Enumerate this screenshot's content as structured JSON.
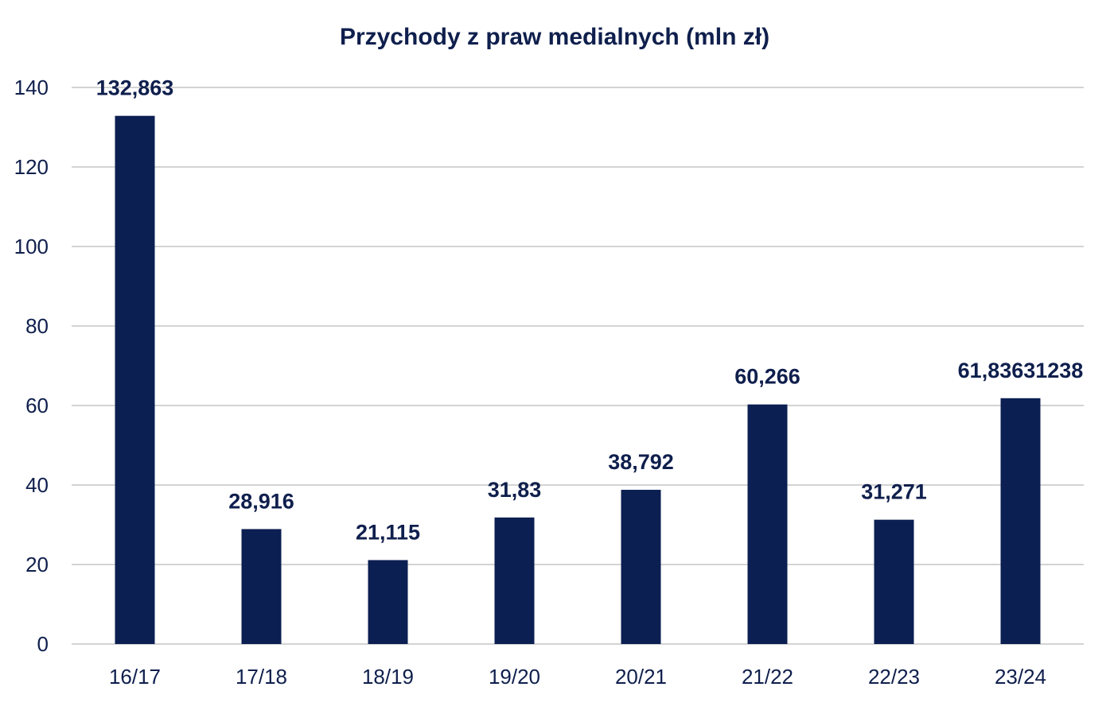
{
  "chart_data": {
    "type": "bar",
    "title": "Przychody z praw medialnych (mln zł)",
    "xlabel": "",
    "ylabel": "",
    "categories": [
      "16/17",
      "17/18",
      "18/19",
      "19/20",
      "20/21",
      "21/22",
      "22/23",
      "23/24"
    ],
    "values": [
      132.863,
      28.916,
      21.115,
      31.83,
      38.792,
      60.266,
      31.271,
      61.83631238
    ],
    "data_labels": [
      "132,863",
      "28,916",
      "21,115",
      "31,83",
      "38,792",
      "60,266",
      "31,271",
      "61,83631238"
    ],
    "ylim": [
      0,
      140
    ],
    "yticks": [
      0,
      20,
      40,
      60,
      80,
      100,
      120,
      140
    ],
    "grid": true,
    "legend": "none",
    "colors": {
      "bar": "#0b1f52",
      "text": "#0f1f4d",
      "grid": "#d3d3d3"
    }
  }
}
